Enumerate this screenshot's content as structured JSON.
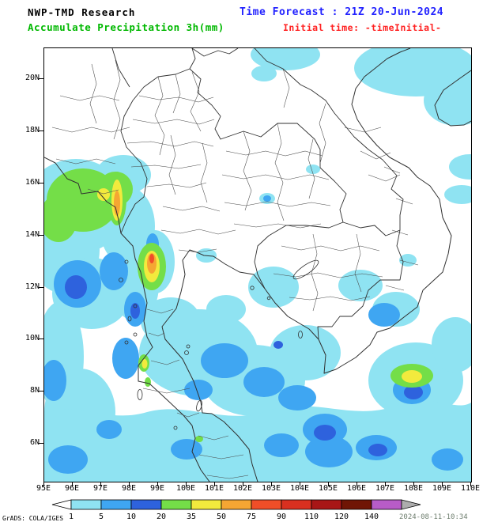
{
  "header": {
    "line1": "NWP-TMD Research",
    "line2": "Accumulate Precipitation 3h(mm)",
    "time_forecast": "Time Forecast : 21Z 20-Jun-2024",
    "initial_time": "Initial time: -timeInitial-"
  },
  "axes": {
    "lat_labels": [
      "20N",
      "18N",
      "16N",
      "14N",
      "12N",
      "10N",
      "8N",
      "6N"
    ],
    "lat_values": [
      20,
      18,
      16,
      14,
      12,
      10,
      8,
      6
    ],
    "lon_labels": [
      "95E",
      "96E",
      "97E",
      "98E",
      "99E",
      "100E",
      "101E",
      "102E",
      "103E",
      "104E",
      "105E",
      "106E",
      "107E",
      "108E",
      "109E",
      "110E"
    ],
    "lon_values": [
      95,
      96,
      97,
      98,
      99,
      100,
      101,
      102,
      103,
      104,
      105,
      106,
      107,
      108,
      109,
      110
    ]
  },
  "legend": {
    "values": [
      "1",
      "5",
      "10",
      "20",
      "35",
      "50",
      "75",
      "90",
      "110",
      "120",
      "140"
    ],
    "colors": [
      "#8FE3F2",
      "#3FA6F2",
      "#2E62DD",
      "#74DE48",
      "#F2EA3D",
      "#F5A633",
      "#F04E28",
      "#D93020",
      "#A81616",
      "#701505",
      "#B85CC8"
    ],
    "left_arrow_color": "#FFFFFF",
    "right_arrow_color": "#ADADAD"
  },
  "footer": {
    "credit": "GrADS: COLA/IGES",
    "timestamp": "2024-08-11-10:34"
  },
  "colors": {
    "title_green": "#00B800",
    "forecast_blue": "#2222FF",
    "initial_red": "#FF2222",
    "map_line": "#303030"
  },
  "chart_data": {
    "type": "heatmap",
    "title": "Accumulate Precipitation 3h (mm)",
    "valid_time": "21Z 20-Jun-2024",
    "region": {
      "lon_range": [
        95,
        110
      ],
      "lat_range_labeled": [
        6,
        20
      ]
    },
    "scale_mm": [
      1,
      5,
      10,
      20,
      35,
      50,
      75,
      90,
      110,
      120,
      140
    ],
    "notable_areas": [
      {
        "area": "Andaman Sea / Myanmar coast 15-16.5N 95-98E",
        "intensity_mm": "20-75"
      },
      {
        "area": "Andaman coast 12.5-13.5N near 98.5E",
        "intensity_mm": "35-90"
      },
      {
        "area": "Gulf of Thailand 8-11.5N",
        "intensity_mm": "1-20"
      },
      {
        "area": "South Vietnam coast 8-9N 107-108.5E",
        "intensity_mm": "20-50"
      },
      {
        "area": "Gulf of Tonkin and 19.5-21N 103-110E",
        "intensity_mm": "1-5"
      },
      {
        "area": "Southern band 5-8N across whole domain",
        "intensity_mm": "1-20"
      }
    ]
  }
}
